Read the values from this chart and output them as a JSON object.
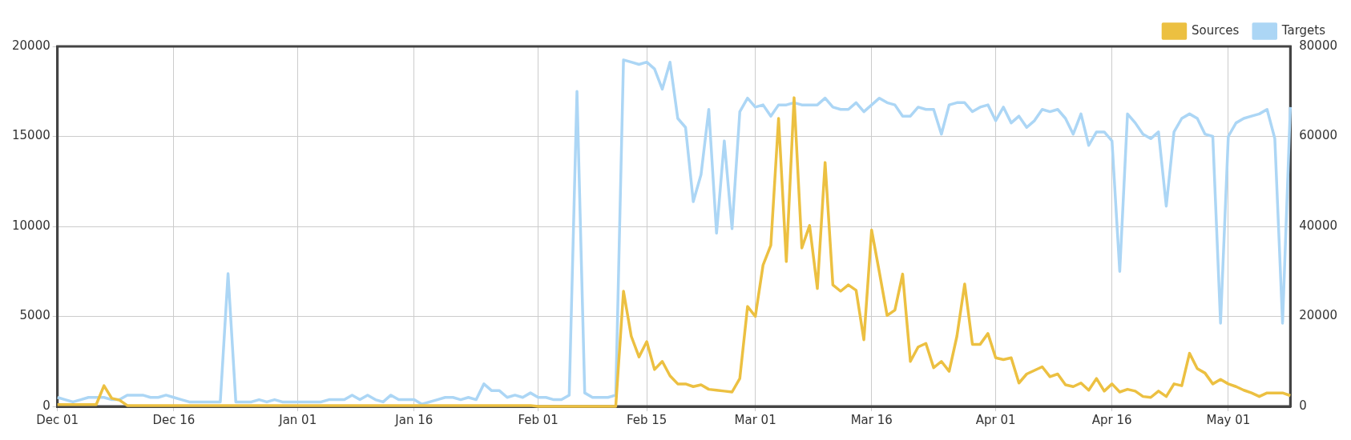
{
  "chart_data": {
    "type": "line",
    "categories": [
      "Dec 01",
      null,
      null,
      null,
      null,
      null,
      null,
      null,
      null,
      null,
      null,
      null,
      null,
      null,
      null,
      "Dec 16",
      null,
      null,
      null,
      null,
      null,
      null,
      null,
      null,
      null,
      null,
      null,
      null,
      null,
      null,
      null,
      "Jan 01",
      null,
      null,
      null,
      null,
      null,
      null,
      null,
      null,
      null,
      null,
      null,
      null,
      null,
      null,
      "Jan 16",
      null,
      null,
      null,
      null,
      null,
      null,
      null,
      null,
      null,
      null,
      null,
      null,
      null,
      null,
      null,
      "Feb 01",
      null,
      null,
      null,
      null,
      null,
      null,
      null,
      null,
      null,
      null,
      null,
      null,
      null,
      "Feb 15",
      null,
      null,
      null,
      null,
      null,
      null,
      null,
      null,
      null,
      null,
      null,
      null,
      null,
      "Mar 01",
      null,
      null,
      null,
      null,
      null,
      null,
      null,
      null,
      null,
      null,
      null,
      null,
      null,
      null,
      "Mar 16",
      null,
      null,
      null,
      null,
      null,
      null,
      null,
      null,
      null,
      null,
      null,
      null,
      null,
      null,
      null,
      "Apr 01",
      null,
      null,
      null,
      null,
      null,
      null,
      null,
      null,
      null,
      null,
      null,
      null,
      null,
      null,
      "Apr 16",
      null,
      null,
      null,
      null,
      null,
      null,
      null,
      null,
      null,
      null,
      null,
      null,
      null,
      null,
      "May 01",
      null,
      null,
      null,
      null,
      null,
      null,
      null,
      null
    ],
    "series": [
      {
        "name": "Sources",
        "color": "#ecc041",
        "values": [
          100,
          100,
          100,
          100,
          100,
          100,
          1150,
          450,
          350,
          50,
          50,
          50,
          50,
          50,
          50,
          50,
          50,
          50,
          50,
          50,
          50,
          50,
          50,
          50,
          50,
          50,
          50,
          50,
          50,
          50,
          50,
          50,
          50,
          50,
          50,
          50,
          50,
          50,
          50,
          50,
          50,
          50,
          50,
          50,
          50,
          50,
          50,
          50,
          50,
          50,
          50,
          50,
          50,
          50,
          50,
          50,
          50,
          50,
          50,
          50,
          50,
          50,
          0,
          0,
          0,
          0,
          0,
          0,
          0,
          0,
          0,
          0,
          0,
          6400,
          3900,
          2750,
          3600,
          2050,
          2500,
          1700,
          1250,
          1250,
          1100,
          1200,
          950,
          900,
          850,
          800,
          1550,
          5550,
          5000,
          7850,
          8950,
          16000,
          8050,
          17150,
          8800,
          10050,
          6550,
          13550,
          6750,
          6400,
          6750,
          6450,
          3700,
          9800,
          7450,
          5050,
          5350,
          7350,
          2500,
          3300,
          3500,
          2150,
          2500,
          1950,
          3900,
          6800,
          3450,
          3450,
          4050,
          2700,
          2600,
          2700,
          1300,
          1800,
          2000,
          2200,
          1650,
          1800,
          1200,
          1100,
          1300,
          900,
          1550,
          850,
          1250,
          800,
          950,
          850,
          550,
          500,
          850,
          550,
          1250,
          1150,
          2950,
          2100,
          1850,
          1250,
          1500,
          1250,
          1100,
          900,
          750,
          550,
          750,
          750,
          750,
          600
        ]
      },
      {
        "name": "Targets",
        "color": "#acd6f5",
        "axis": "y2",
        "values": [
          2000,
          1500,
          1000,
          1500,
          2000,
          2000,
          2000,
          1500,
          1500,
          2500,
          2500,
          2500,
          2000,
          2000,
          2500,
          2000,
          1500,
          1000,
          1000,
          1000,
          1000,
          1000,
          29500,
          1000,
          1000,
          1000,
          1500,
          1000,
          1500,
          1000,
          1000,
          1000,
          1000,
          1000,
          1000,
          1500,
          1500,
          1500,
          2500,
          1500,
          2500,
          1500,
          1000,
          2500,
          1500,
          1500,
          1500,
          500,
          1000,
          1500,
          2000,
          2000,
          1500,
          2000,
          1500,
          5000,
          3500,
          3500,
          2000,
          2500,
          2000,
          3000,
          2000,
          2000,
          1500,
          1500,
          2500,
          70000,
          3000,
          2000,
          2000,
          2000,
          2500,
          77000,
          76500,
          76000,
          76500,
          75000,
          70500,
          76500,
          64000,
          62000,
          45500,
          51500,
          66000,
          38500,
          59000,
          39500,
          65500,
          68500,
          66500,
          67000,
          64500,
          67000,
          67000,
          67500,
          67000,
          67000,
          67000,
          68500,
          66500,
          66000,
          66000,
          67500,
          65500,
          67000,
          68500,
          67500,
          67000,
          64500,
          64500,
          66500,
          66000,
          66000,
          60500,
          67000,
          67500,
          67500,
          65500,
          66500,
          67000,
          63500,
          66500,
          63000,
          64500,
          62000,
          63500,
          66000,
          65500,
          66000,
          64000,
          60500,
          65000,
          58000,
          61000,
          61000,
          59000,
          30000,
          65000,
          63000,
          60500,
          59500,
          61000,
          44500,
          61000,
          64000,
          65000,
          64000,
          60500,
          60000,
          18500,
          60000,
          63000,
          64000,
          64500,
          65000,
          66000,
          59500,
          18500,
          66500
        ]
      }
    ],
    "ylim": [
      0,
      20000
    ],
    "yticks": [
      0,
      5000,
      10000,
      15000,
      20000
    ],
    "y2lim": [
      0,
      80000
    ],
    "y2ticks": [
      0,
      20000,
      40000,
      60000,
      80000
    ],
    "grid": true,
    "legend": "top right"
  }
}
